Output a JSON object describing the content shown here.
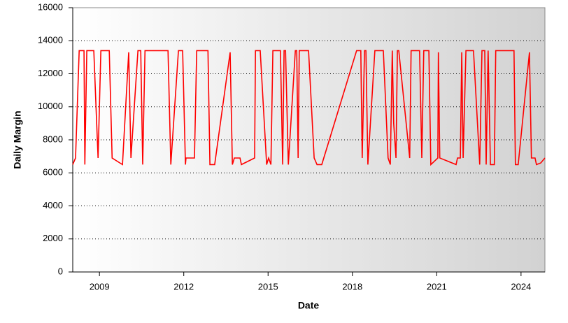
{
  "chart_data": {
    "type": "line",
    "x_label": "Date",
    "y_label": "Daily Margin",
    "series": [
      {
        "name": "Daily Margin",
        "color": "#ff0000",
        "x": [
          2008.05,
          2008.15,
          2008.28,
          2008.45,
          2008.48,
          2008.55,
          2008.8,
          2008.9,
          2008.95,
          2009.05,
          2009.35,
          2009.45,
          2009.82,
          2010.04,
          2010.12,
          2010.37,
          2010.47,
          2010.54,
          2010.62,
          2011.44,
          2011.54,
          2011.81,
          2011.96,
          2012.06,
          2012.08,
          2012.38,
          2012.46,
          2012.86,
          2012.93,
          2013.1,
          2013.65,
          2013.73,
          2013.8,
          2014.0,
          2014.05,
          2014.52,
          2014.55,
          2014.72,
          2014.95,
          2015.02,
          2015.1,
          2015.17,
          2015.44,
          2015.52,
          2015.57,
          2015.62,
          2015.72,
          2015.97,
          2016.02,
          2016.07,
          2016.11,
          2016.44,
          2016.64,
          2016.74,
          2016.91,
          2018.15,
          2018.3,
          2018.35,
          2018.43,
          2018.48,
          2018.55,
          2018.8,
          2019.1,
          2019.27,
          2019.35,
          2019.42,
          2019.47,
          2019.55,
          2019.6,
          2019.65,
          2020.04,
          2020.09,
          2020.39,
          2020.47,
          2020.54,
          2020.72,
          2020.79,
          2021.04,
          2021.06,
          2021.11,
          2021.69,
          2021.74,
          2021.84,
          2021.89,
          2021.94,
          2022.04,
          2022.31,
          2022.53,
          2022.61,
          2022.71,
          2022.76,
          2022.83,
          2022.91,
          2023.05,
          2023.1,
          2023.75,
          2023.8,
          2023.9,
          2024.3,
          2024.37,
          2024.5,
          2024.55,
          2024.7,
          2024.85
        ],
        "values": [
          6500,
          6900,
          13400,
          13400,
          6500,
          13400,
          13400,
          9000,
          6900,
          13400,
          13400,
          6900,
          6500,
          13300,
          6900,
          13400,
          13400,
          6500,
          13400,
          13400,
          6500,
          13400,
          13400,
          6500,
          6900,
          6900,
          13400,
          13400,
          6500,
          6500,
          13300,
          6500,
          6900,
          6900,
          6500,
          6900,
          13400,
          13400,
          6500,
          6900,
          6500,
          13400,
          13400,
          6500,
          13400,
          13400,
          6500,
          13400,
          13400,
          6900,
          13400,
          13400,
          6900,
          6500,
          6500,
          13400,
          13400,
          6900,
          13400,
          13400,
          6500,
          13400,
          13400,
          6900,
          6500,
          13400,
          9000,
          6900,
          13400,
          13400,
          6900,
          13400,
          13400,
          6900,
          13400,
          13400,
          6500,
          6900,
          13300,
          6900,
          6500,
          6900,
          6900,
          13300,
          6900,
          13400,
          13400,
          6500,
          13400,
          13400,
          6500,
          13400,
          6500,
          6500,
          13400,
          13400,
          6500,
          6500,
          13300,
          6900,
          6900,
          6500,
          6600,
          6900
        ]
      }
    ],
    "xlim": [
      2008.05,
      2024.85
    ],
    "xticks": [
      2009,
      2012,
      2015,
      2018,
      2021,
      2024
    ],
    "ylim": [
      0,
      16000
    ],
    "yticks": [
      0,
      2000,
      4000,
      6000,
      8000,
      10000,
      12000,
      14000,
      16000
    ],
    "grid": true
  }
}
